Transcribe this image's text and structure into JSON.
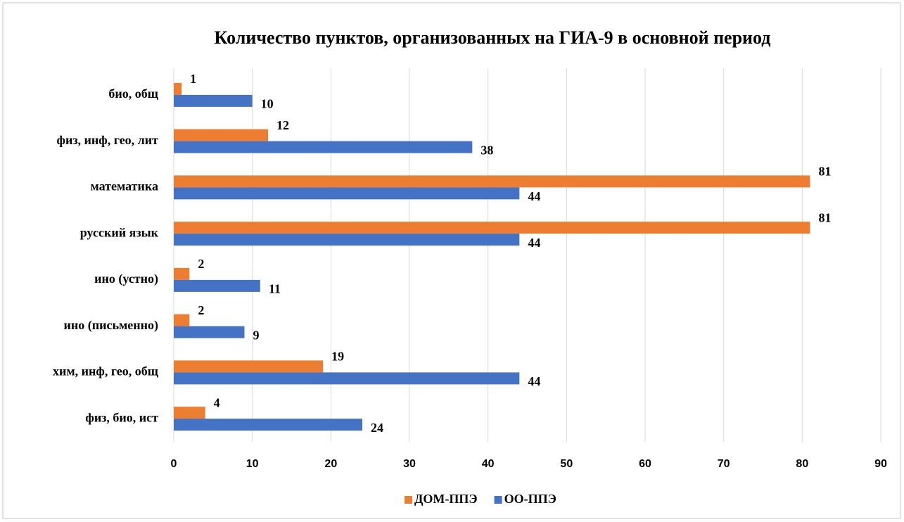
{
  "chart_data": {
    "type": "bar",
    "orientation": "horizontal",
    "title": "Количество пунктов, организованных на ГИА-9 в основной период",
    "categories": [
      "био, общ",
      "физ, инф, гео, лит",
      "математика",
      "русский язык",
      "ино (устно)",
      "ино (письменно)",
      "хим, инф, гео, общ",
      "физ, био, ист"
    ],
    "series": [
      {
        "name": "ДОМ-ППЭ",
        "color": "#ed7d31",
        "values": [
          1,
          12,
          81,
          81,
          2,
          2,
          19,
          4
        ]
      },
      {
        "name": "ОО-ППЭ",
        "color": "#4472c4",
        "values": [
          10,
          38,
          44,
          44,
          11,
          9,
          44,
          24
        ]
      }
    ],
    "xlim": [
      0,
      90
    ],
    "xticks": [
      0,
      10,
      20,
      30,
      40,
      50,
      60,
      70,
      80,
      90
    ],
    "grid": true,
    "legend": "bottom"
  }
}
